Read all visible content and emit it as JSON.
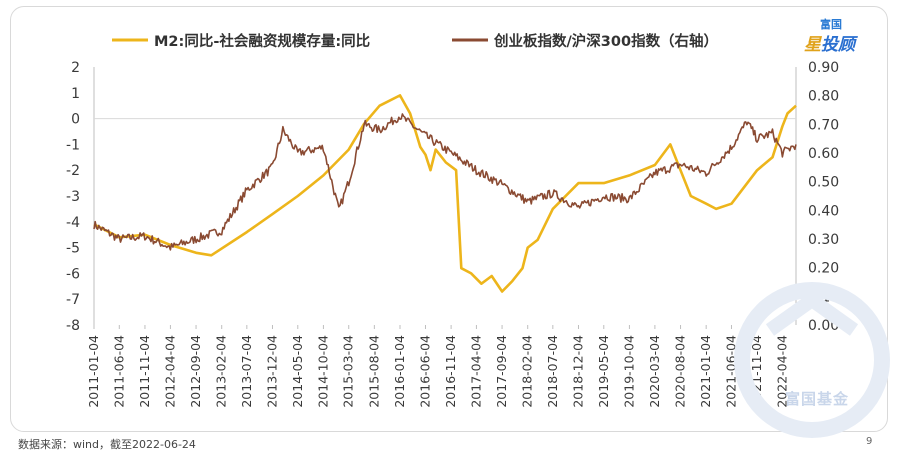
{
  "footer": {
    "source": "数据来源：wind，截至2022-06-24",
    "page": "9"
  },
  "logo": {
    "top": "富国",
    "star": "星",
    "main": "投顾"
  },
  "watermark": {
    "text": "富国基金"
  },
  "colors": {
    "m2": "#EDB51B",
    "gem": "#8A4A32",
    "grid": "#d9d9d9",
    "axis": "#bfbfbf"
  },
  "chart_data": {
    "type": "line",
    "title": "",
    "legend": {
      "placement": "top",
      "entries": [
        "M2:同比-社会融资规模存量:同比",
        "创业板指数/沪深300指数（右轴）"
      ]
    },
    "x_tick_labels": [
      "2011-01-04",
      "2011-06-04",
      "2011-11-04",
      "2012-04-04",
      "2012-09-04",
      "2013-02-04",
      "2013-07-04",
      "2013-12-04",
      "2014-05-04",
      "2014-10-04",
      "2015-03-04",
      "2015-08-04",
      "2016-01-04",
      "2016-06-04",
      "2016-11-04",
      "2017-04-04",
      "2017-09-04",
      "2018-02-04",
      "2018-07-04",
      "2018-12-04",
      "2019-05-04",
      "2019-10-04",
      "2020-03-04",
      "2020-08-04",
      "2021-01-04",
      "2021-06-04",
      "2021-11-04",
      "2022-04-04"
    ],
    "x_range": [
      "2011-01-04",
      "2022-06-24"
    ],
    "y_left": {
      "range": [
        -8,
        2
      ],
      "ticks": [
        "2",
        "1",
        "0",
        "-1",
        "-2",
        "-3",
        "-4",
        "-5",
        "-6",
        "-7",
        "-8"
      ]
    },
    "y_right": {
      "range": [
        0,
        0.9
      ],
      "ticks": [
        "0.90",
        "0.80",
        "0.70",
        "0.60",
        "0.50",
        "0.40",
        "0.30",
        "0.20",
        "0.10",
        "0.00"
      ]
    },
    "grid": "none",
    "series": [
      {
        "name": "M2:同比-社会融资规模存量:同比",
        "axis": "left",
        "points": [
          [
            "2011-01-04",
            -4.1
          ],
          [
            "2011-06-04",
            -4.6
          ],
          [
            "2011-11-04",
            -4.5
          ],
          [
            "2012-04-04",
            -4.9
          ],
          [
            "2012-09-04",
            -5.2
          ],
          [
            "2012-12-04",
            -5.3
          ],
          [
            "2013-07-04",
            -4.4
          ],
          [
            "2013-12-04",
            -3.7
          ],
          [
            "2014-05-04",
            -3.0
          ],
          [
            "2014-10-04",
            -2.2
          ],
          [
            "2015-03-04",
            -1.2
          ],
          [
            "2015-06-04",
            -0.2
          ],
          [
            "2015-09-04",
            0.5
          ],
          [
            "2016-01-04",
            0.9
          ],
          [
            "2016-03-04",
            0.2
          ],
          [
            "2016-05-04",
            -1.1
          ],
          [
            "2016-06-04",
            -1.4
          ],
          [
            "2016-07-04",
            -2.0
          ],
          [
            "2016-08-04",
            -1.2
          ],
          [
            "2016-10-04",
            -1.7
          ],
          [
            "2016-12-04",
            -2.0
          ],
          [
            "2017-01-04",
            -5.8
          ],
          [
            "2017-03-04",
            -6.0
          ],
          [
            "2017-05-04",
            -6.4
          ],
          [
            "2017-07-04",
            -6.1
          ],
          [
            "2017-09-04",
            -6.7
          ],
          [
            "2017-11-04",
            -6.3
          ],
          [
            "2018-01-04",
            -5.8
          ],
          [
            "2018-02-04",
            -5.0
          ],
          [
            "2018-04-04",
            -4.7
          ],
          [
            "2018-07-04",
            -3.5
          ],
          [
            "2018-12-04",
            -2.5
          ],
          [
            "2019-05-04",
            -2.5
          ],
          [
            "2019-10-04",
            -2.2
          ],
          [
            "2020-03-04",
            -1.8
          ],
          [
            "2020-06-04",
            -1.0
          ],
          [
            "2020-08-04",
            -2.0
          ],
          [
            "2020-10-04",
            -3.0
          ],
          [
            "2021-01-04",
            -3.3
          ],
          [
            "2021-03-04",
            -3.5
          ],
          [
            "2021-06-04",
            -3.3
          ],
          [
            "2021-11-04",
            -2.0
          ],
          [
            "2022-02-04",
            -1.5
          ],
          [
            "2022-04-04",
            -0.3
          ],
          [
            "2022-05-04",
            0.2
          ],
          [
            "2022-06-24",
            0.5
          ]
        ]
      },
      {
        "name": "创业板指数/沪深300指数（右轴）",
        "axis": "right",
        "points": [
          [
            "2011-01-04",
            0.35
          ],
          [
            "2011-06-04",
            0.3
          ],
          [
            "2011-11-04",
            0.31
          ],
          [
            "2012-04-04",
            0.27
          ],
          [
            "2012-09-04",
            0.3
          ],
          [
            "2013-02-04",
            0.33
          ],
          [
            "2013-07-04",
            0.47
          ],
          [
            "2013-12-04",
            0.55
          ],
          [
            "2014-02-04",
            0.68
          ],
          [
            "2014-05-04",
            0.6
          ],
          [
            "2014-10-04",
            0.62
          ],
          [
            "2015-01-04",
            0.4
          ],
          [
            "2015-03-04",
            0.5
          ],
          [
            "2015-06-04",
            0.7
          ],
          [
            "2015-09-04",
            0.68
          ],
          [
            "2016-01-04",
            0.73
          ],
          [
            "2016-06-04",
            0.66
          ],
          [
            "2016-11-04",
            0.6
          ],
          [
            "2017-04-04",
            0.54
          ],
          [
            "2017-09-04",
            0.49
          ],
          [
            "2018-02-04",
            0.43
          ],
          [
            "2018-07-04",
            0.46
          ],
          [
            "2018-12-04",
            0.41
          ],
          [
            "2019-05-04",
            0.45
          ],
          [
            "2019-10-04",
            0.44
          ],
          [
            "2020-03-04",
            0.53
          ],
          [
            "2020-08-04",
            0.56
          ],
          [
            "2021-01-04",
            0.53
          ],
          [
            "2021-06-04",
            0.62
          ],
          [
            "2021-09-04",
            0.71
          ],
          [
            "2021-11-04",
            0.65
          ],
          [
            "2022-02-04",
            0.67
          ],
          [
            "2022-04-04",
            0.6
          ],
          [
            "2022-06-24",
            0.63
          ]
        ]
      }
    ]
  }
}
